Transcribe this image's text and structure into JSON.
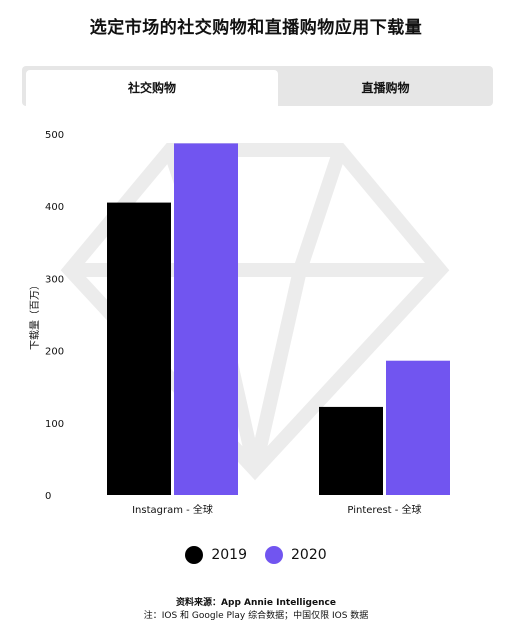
{
  "title": "选定市场的社交购物和直播购物应用下载量",
  "tabs": [
    {
      "label": "社交购物",
      "active": true
    },
    {
      "label": "直播购物",
      "active": false
    }
  ],
  "colors": {
    "series_2019": "#000000",
    "series_2020": "#7155f0",
    "tab_bg": "#e6e6e6",
    "watermark": "#ececec"
  },
  "chart_data": {
    "type": "bar",
    "categories": [
      "Instagram - 全球",
      "Pinterest - 全球"
    ],
    "series": [
      {
        "name": "2019",
        "values": [
          405,
          122
        ]
      },
      {
        "name": "2020",
        "values": [
          487,
          186
        ]
      }
    ],
    "ylabel": "下载量（百万）",
    "ylim": [
      0,
      500
    ],
    "yticks": [
      0,
      100,
      200,
      300,
      400,
      500
    ],
    "legend": "bottom-center",
    "grid": false
  },
  "legend": [
    {
      "label": "2019"
    },
    {
      "label": "2020"
    }
  ],
  "source": "资料来源：App Annie Intelligence",
  "note": "注：IOS 和 Google Play 综合数据；中国仅限 IOS 数据"
}
